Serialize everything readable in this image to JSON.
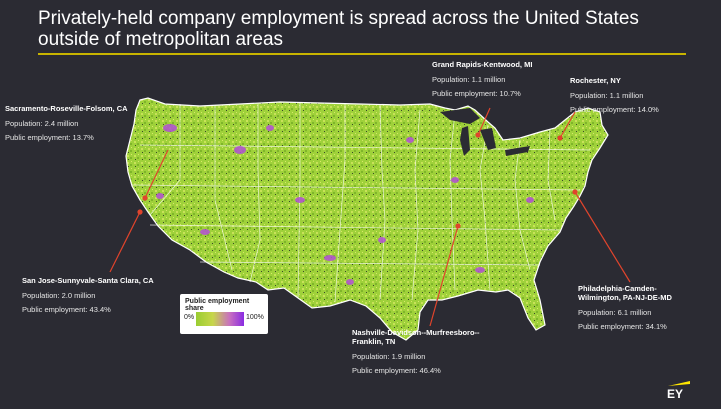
{
  "title": "Privately-held company employment is spread across the United States outside of metropolitan areas",
  "colors": {
    "background": "#2b2b33",
    "low_share": "#9acd32",
    "high_share": "#8a2be2",
    "accent_rule": "#c8b400",
    "pointer": "#e0442c"
  },
  "annotations": [
    {
      "id": "sacramento",
      "name": "Sacramento-Roseville-Folsom, CA",
      "population": "Population:  2.4 million",
      "public": "Public employment:  13.7%"
    },
    {
      "id": "sanjose",
      "name": "San Jose-Sunnyvale-Santa Clara, CA",
      "population": "Population:  2.0 million",
      "public": "Public employment:  43.4%"
    },
    {
      "id": "grandrapids",
      "name": "Grand Rapids-Kentwood, MI",
      "population": "Population:  1.1 million",
      "public": "Public employment:  10.7%"
    },
    {
      "id": "rochester",
      "name": "Rochester, NY",
      "population": "Population:  1.1 million",
      "public": "Public employment:  14.0%"
    },
    {
      "id": "philadelphia",
      "name": "Philadelphia-Camden-Wilmington, PA-NJ-DE-MD",
      "population": "Population:  6.1 million",
      "public": "Public employment:  34.1%"
    },
    {
      "id": "nashville",
      "name": "Nashville-Davidson--Murfreesboro--Franklin, TN",
      "population": "Population:  1.9 million",
      "public": "Public employment:  46.4%"
    }
  ],
  "legend": {
    "title": "Public employment share",
    "min_label": "0%",
    "max_label": "100%"
  },
  "logo": {
    "text": "EY"
  }
}
